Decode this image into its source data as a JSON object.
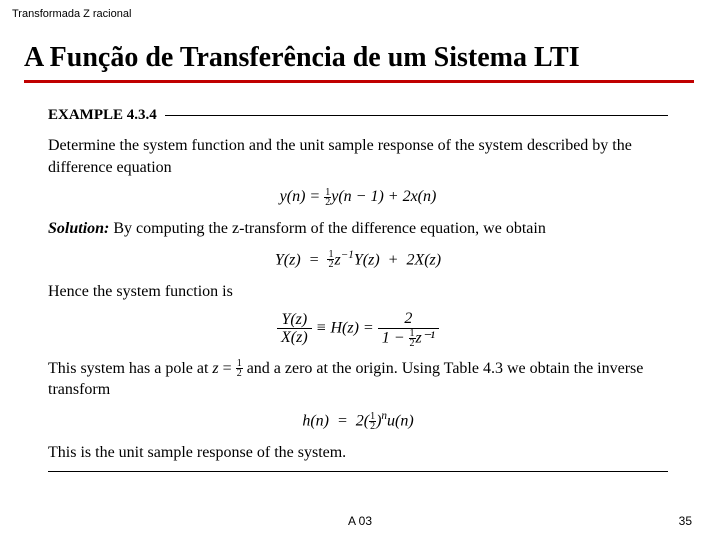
{
  "header": {
    "small": "Transformada Z racional"
  },
  "title": "A Função de Transferência de um Sistema LTI",
  "example": {
    "label": "EXAMPLE 4.3.4",
    "intro": "Determine the system function and the unit sample response of the system described by the difference equation",
    "eq1_parts": {
      "yn": "y(n)  =  ",
      "half": "½",
      "mid": "y(n − 1)  +  2x(n)"
    },
    "solution_label": "Solution:",
    "solution_text": "  By computing the z-transform of the difference equation, we obtain",
    "eq2": "Y(z)  =  ½ z⁻¹Y(z)  +  2X(z)",
    "hence": "Hence the system function is",
    "eq3": {
      "left_num": "Y(z)",
      "left_den": "X(z)",
      "mid": "  ≡  H(z)  =  ",
      "right_num": "2",
      "right_den_pre": "1 − ",
      "right_den_post": "z⁻¹"
    },
    "para_pole": "This system has a pole at z = ½ and a zero at the origin. Using Table 4.3 we obtain the inverse transform",
    "eq4": "h(n)  =  2(½)ⁿu(n)",
    "closing": "This is the unit sample response of the system."
  },
  "footer": {
    "code": "A 03",
    "page": "35"
  },
  "colors": {
    "rule": "#c00000",
    "text": "#000000",
    "bg": "#ffffff"
  }
}
